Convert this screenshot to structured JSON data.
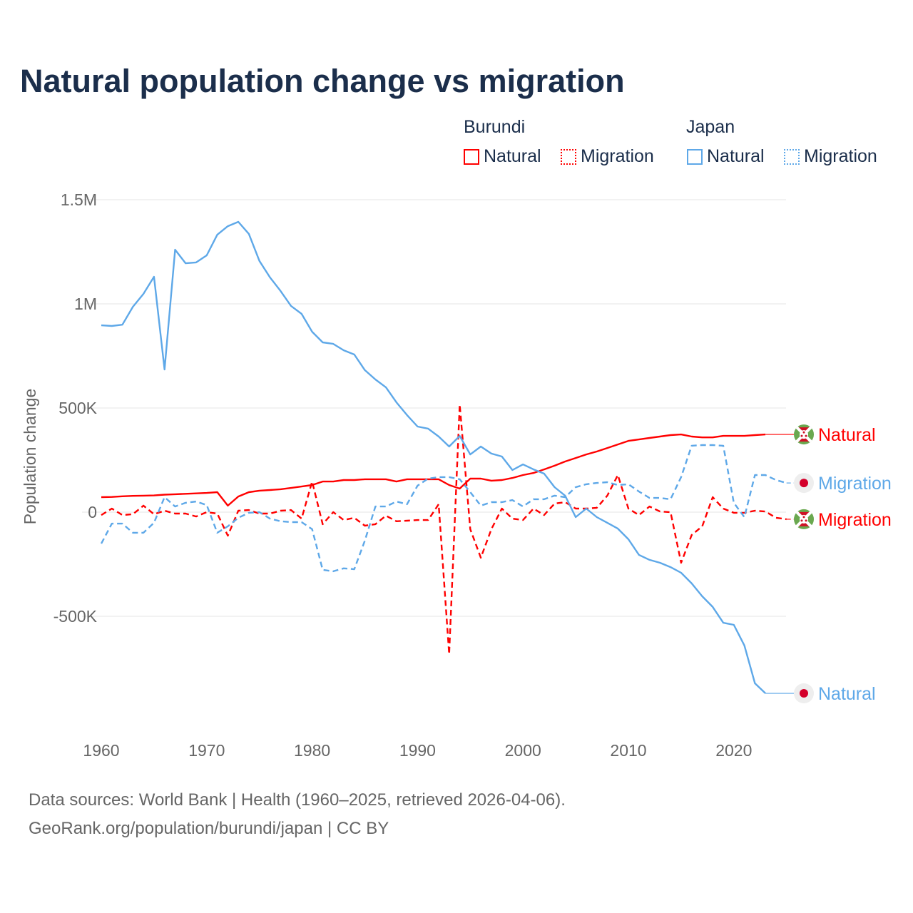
{
  "chart_data": {
    "type": "line",
    "title": "Natural population change vs migration",
    "xlabel": "",
    "ylabel": "Population change",
    "xlim": [
      1960,
      2025
    ],
    "ylim": [
      -1000000,
      1500000
    ],
    "x_ticks": [
      1960,
      1970,
      1980,
      1990,
      2000,
      2010,
      2020
    ],
    "x_tick_labels": [
      "1960",
      "1970",
      "1980",
      "1990",
      "2000",
      "2010",
      "2020"
    ],
    "y_ticks": [
      1500000,
      1000000,
      500000,
      0,
      -500000
    ],
    "y_tick_labels": [
      "1.5M",
      "1M",
      "500K",
      "0",
      "-500K"
    ],
    "grid": true,
    "legend_placement": "top-right",
    "legend_groups": [
      "Burundi",
      "Japan"
    ],
    "series": [
      {
        "name": "Natural",
        "country": "Burundi",
        "color": "#ff0000",
        "dash": false,
        "start": 1960,
        "end_label": "Natural",
        "values": [
          72000,
          73000,
          76000,
          78000,
          79000,
          80000,
          84000,
          86000,
          88000,
          90000,
          92000,
          96000,
          31000,
          75000,
          96000,
          103000,
          106000,
          110000,
          116000,
          123000,
          130000,
          147000,
          147000,
          154000,
          154000,
          158000,
          158000,
          158000,
          147000,
          158000,
          158000,
          158000,
          158000,
          130000,
          113000,
          161000,
          161000,
          151000,
          154000,
          164000,
          178000,
          188000,
          205000,
          223000,
          243000,
          260000,
          277000,
          291000,
          308000,
          325000,
          342000,
          349000,
          356000,
          363000,
          370000,
          373000,
          363000,
          359000,
          359000,
          366000,
          366000,
          366000,
          370000,
          373000
        ]
      },
      {
        "name": "Migration",
        "country": "Burundi",
        "color": "#ff0000",
        "dash": true,
        "start": 1960,
        "end_label": "Migration",
        "values": [
          -14000,
          17000,
          -14000,
          -10000,
          31000,
          -10000,
          7000,
          -7000,
          -7000,
          -21000,
          0,
          -7000,
          -113000,
          7000,
          10000,
          -7000,
          -7000,
          7000,
          10000,
          -31000,
          147000,
          -58000,
          0,
          -38000,
          -27000,
          -65000,
          -58000,
          -17000,
          -44000,
          -41000,
          -38000,
          -38000,
          38000,
          -682000,
          517000,
          -82000,
          -219000,
          -82000,
          17000,
          -31000,
          -38000,
          17000,
          -14000,
          41000,
          48000,
          17000,
          17000,
          21000,
          79000,
          178000,
          17000,
          -14000,
          27000,
          3000,
          0,
          -243000,
          -110000,
          -68000,
          72000,
          17000,
          -3000,
          -3000,
          7000,
          3000,
          -27000,
          -34000
        ]
      },
      {
        "name": "Natural",
        "country": "Japan",
        "color": "#5ea8e8",
        "dash": false,
        "start": 1960,
        "end_label": "Natural",
        "values": [
          897000,
          894000,
          900000,
          986000,
          1048000,
          1130000,
          685000,
          1260000,
          1195000,
          1199000,
          1233000,
          1332000,
          1373000,
          1394000,
          1336000,
          1206000,
          1127000,
          1062000,
          990000,
          952000,
          866000,
          815000,
          808000,
          777000,
          757000,
          682000,
          637000,
          599000,
          527000,
          466000,
          411000,
          401000,
          363000,
          315000,
          366000,
          277000,
          315000,
          281000,
          267000,
          202000,
          229000,
          205000,
          185000,
          120000,
          79000,
          -24000,
          17000,
          -24000,
          -51000,
          -79000,
          -130000,
          -205000,
          -229000,
          -243000,
          -264000,
          -291000,
          -342000,
          -404000,
          -455000,
          -531000,
          -541000,
          -640000,
          -822000,
          -870000
        ]
      },
      {
        "name": "Migration",
        "country": "Japan",
        "color": "#5ea8e8",
        "dash": true,
        "start": 1960,
        "end_label": "Migration",
        "values": [
          -151000,
          -55000,
          -55000,
          -99000,
          -99000,
          -51000,
          72000,
          27000,
          45000,
          51000,
          34000,
          -99000,
          -68000,
          -27000,
          -3000,
          0,
          -31000,
          -44000,
          -48000,
          -48000,
          -82000,
          -277000,
          -284000,
          -270000,
          -274000,
          -137000,
          27000,
          27000,
          51000,
          38000,
          127000,
          161000,
          168000,
          168000,
          158000,
          96000,
          31000,
          48000,
          48000,
          58000,
          27000,
          62000,
          62000,
          79000,
          72000,
          120000,
          134000,
          140000,
          144000,
          130000,
          134000,
          99000,
          68000,
          68000,
          62000,
          168000,
          319000,
          322000,
          322000,
          319000,
          45000,
          -24000,
          178000,
          178000,
          154000,
          140000
        ]
      }
    ]
  },
  "legend": {
    "burundi": "Burundi",
    "japan": "Japan",
    "natural": "Natural",
    "migration": "Migration"
  },
  "footer": {
    "line1": "Data sources: World Bank | Health (1960–2025, retrieved 2026-04-06).",
    "line2": "GeoRank.org/population/burundi/japan | CC BY"
  }
}
